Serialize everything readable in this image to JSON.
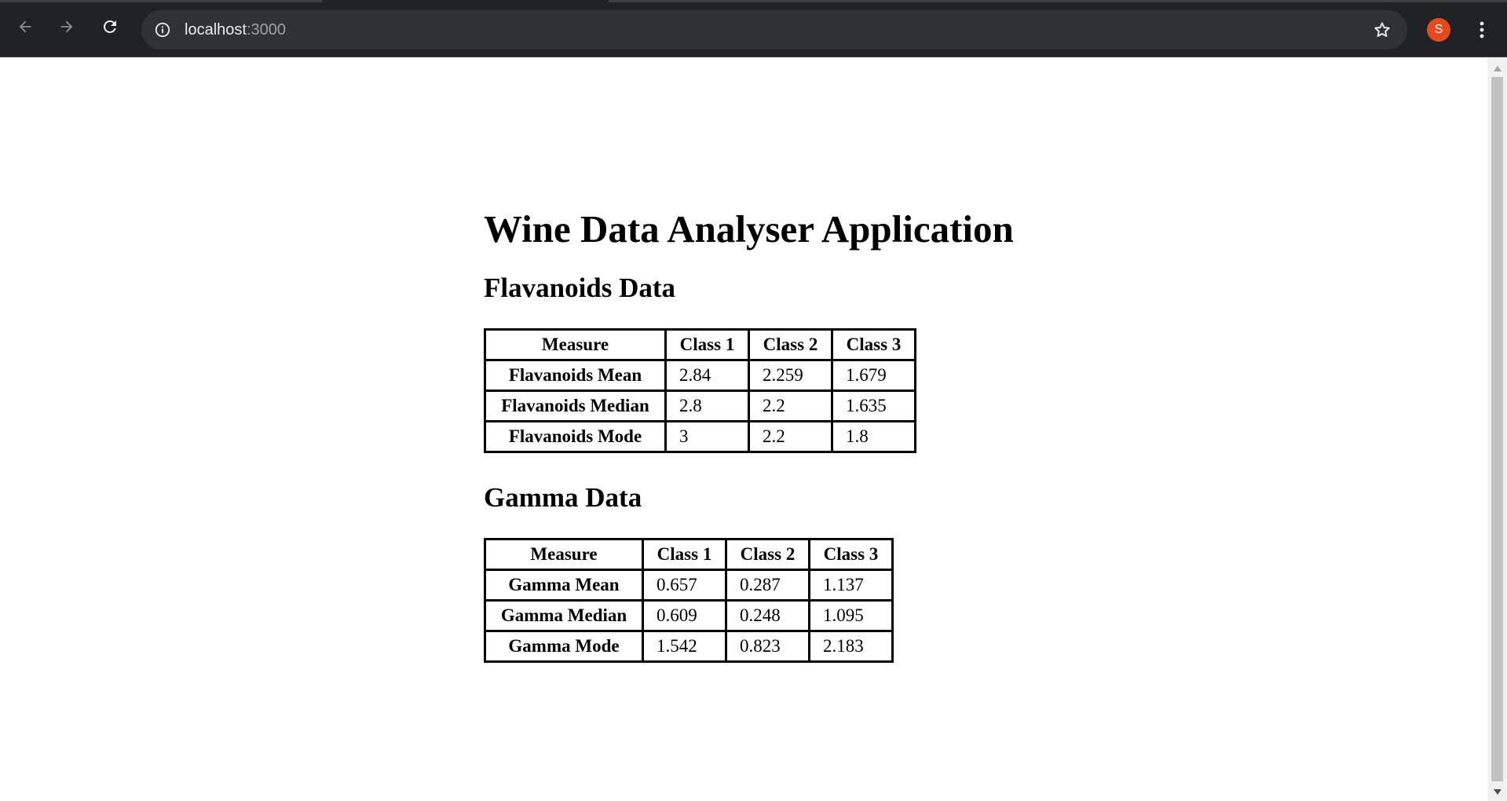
{
  "browser": {
    "url_host": "localhost",
    "url_port": ":3000",
    "profile_initial": "S",
    "colors": {
      "chrome_bg": "#202124",
      "omnibox_bg": "#303134",
      "icon": "#e8eaed",
      "avatar_bg": "#e5491e"
    }
  },
  "page": {
    "title": "Wine Data Analyser Application",
    "flavanoids": {
      "heading": "Flavanoids Data",
      "headers": [
        "Measure",
        "Class 1",
        "Class 2",
        "Class 3"
      ],
      "rows": [
        {
          "label": "Flavanoids Mean",
          "values": [
            "2.84",
            "2.259",
            "1.679"
          ]
        },
        {
          "label": "Flavanoids Median",
          "values": [
            "2.8",
            "2.2",
            "1.635"
          ]
        },
        {
          "label": "Flavanoids Mode",
          "values": [
            "3",
            "2.2",
            "1.8"
          ]
        }
      ]
    },
    "gamma": {
      "heading": "Gamma Data",
      "headers": [
        "Measure",
        "Class 1",
        "Class 2",
        "Class 3"
      ],
      "rows": [
        {
          "label": "Gamma Mean",
          "values": [
            "0.657",
            "0.287",
            "1.137"
          ]
        },
        {
          "label": "Gamma Median",
          "values": [
            "0.609",
            "0.248",
            "1.095"
          ]
        },
        {
          "label": "Gamma Mode",
          "values": [
            "1.542",
            "0.823",
            "2.183"
          ]
        }
      ]
    }
  }
}
